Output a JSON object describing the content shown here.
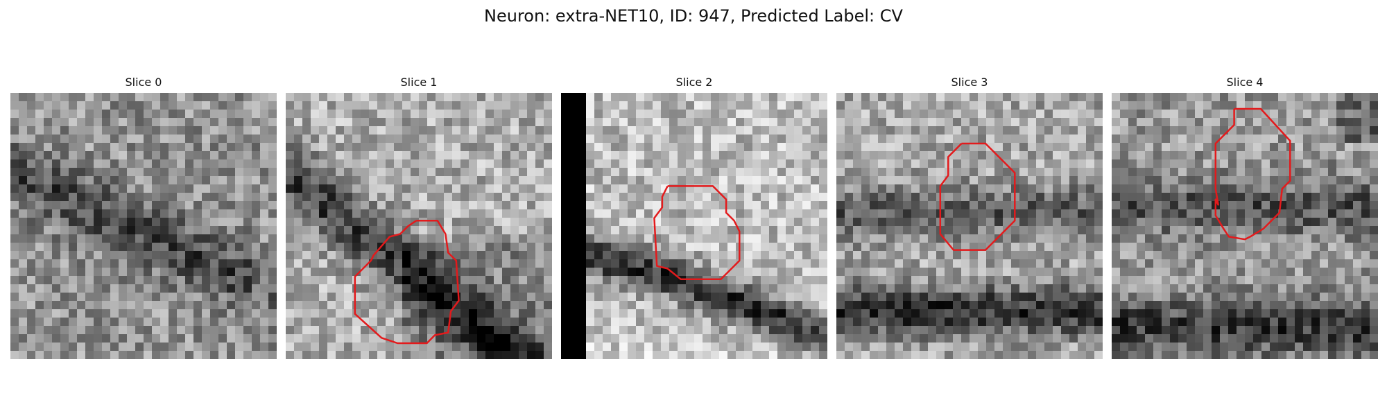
{
  "title": "Neuron: extra-NET10, ID: 947, Predicted Label: CV",
  "outline_color": "#e31a1c",
  "colormap": "gray",
  "slices": [
    {
      "label": "Slice 0",
      "roi": []
    },
    {
      "label": "Slice 1",
      "roi": [
        [
          0.49,
          0.48
        ],
        [
          0.57,
          0.48
        ],
        [
          0.6,
          0.53
        ],
        [
          0.61,
          0.6
        ],
        [
          0.64,
          0.63
        ],
        [
          0.65,
          0.78
        ],
        [
          0.62,
          0.82
        ],
        [
          0.61,
          0.9
        ],
        [
          0.56,
          0.91
        ],
        [
          0.53,
          0.94
        ],
        [
          0.42,
          0.94
        ],
        [
          0.36,
          0.92
        ],
        [
          0.26,
          0.83
        ],
        [
          0.26,
          0.69
        ],
        [
          0.3,
          0.65
        ],
        [
          0.32,
          0.63
        ],
        [
          0.33,
          0.61
        ],
        [
          0.39,
          0.54
        ],
        [
          0.43,
          0.53
        ],
        [
          0.46,
          0.5
        ],
        [
          0.49,
          0.48
        ]
      ]
    },
    {
      "label": "Slice 2",
      "roi": [
        [
          0.4,
          0.35
        ],
        [
          0.57,
          0.35
        ],
        [
          0.62,
          0.4
        ],
        [
          0.62,
          0.45
        ],
        [
          0.65,
          0.48
        ],
        [
          0.67,
          0.52
        ],
        [
          0.67,
          0.63
        ],
        [
          0.65,
          0.65
        ],
        [
          0.6,
          0.7
        ],
        [
          0.45,
          0.7
        ],
        [
          0.4,
          0.66
        ],
        [
          0.36,
          0.65
        ],
        [
          0.35,
          0.47
        ],
        [
          0.38,
          0.43
        ],
        [
          0.38,
          0.39
        ],
        [
          0.4,
          0.35
        ]
      ]
    },
    {
      "label": "Slice 3",
      "roi": [
        [
          0.47,
          0.19
        ],
        [
          0.56,
          0.19
        ],
        [
          0.67,
          0.3
        ],
        [
          0.67,
          0.48
        ],
        [
          0.56,
          0.59
        ],
        [
          0.44,
          0.59
        ],
        [
          0.39,
          0.53
        ],
        [
          0.39,
          0.35
        ],
        [
          0.42,
          0.31
        ],
        [
          0.42,
          0.24
        ],
        [
          0.47,
          0.19
        ]
      ]
    },
    {
      "label": "Slice 4",
      "roi": [
        [
          0.46,
          0.06
        ],
        [
          0.56,
          0.06
        ],
        [
          0.67,
          0.18
        ],
        [
          0.67,
          0.33
        ],
        [
          0.64,
          0.36
        ],
        [
          0.63,
          0.45
        ],
        [
          0.57,
          0.51
        ],
        [
          0.52,
          0.54
        ],
        [
          0.5,
          0.55
        ],
        [
          0.44,
          0.54
        ],
        [
          0.42,
          0.51
        ],
        [
          0.39,
          0.46
        ],
        [
          0.39,
          0.4
        ],
        [
          0.4,
          0.42
        ],
        [
          0.39,
          0.36
        ],
        [
          0.39,
          0.19
        ],
        [
          0.46,
          0.12
        ],
        [
          0.46,
          0.06
        ]
      ]
    }
  ]
}
